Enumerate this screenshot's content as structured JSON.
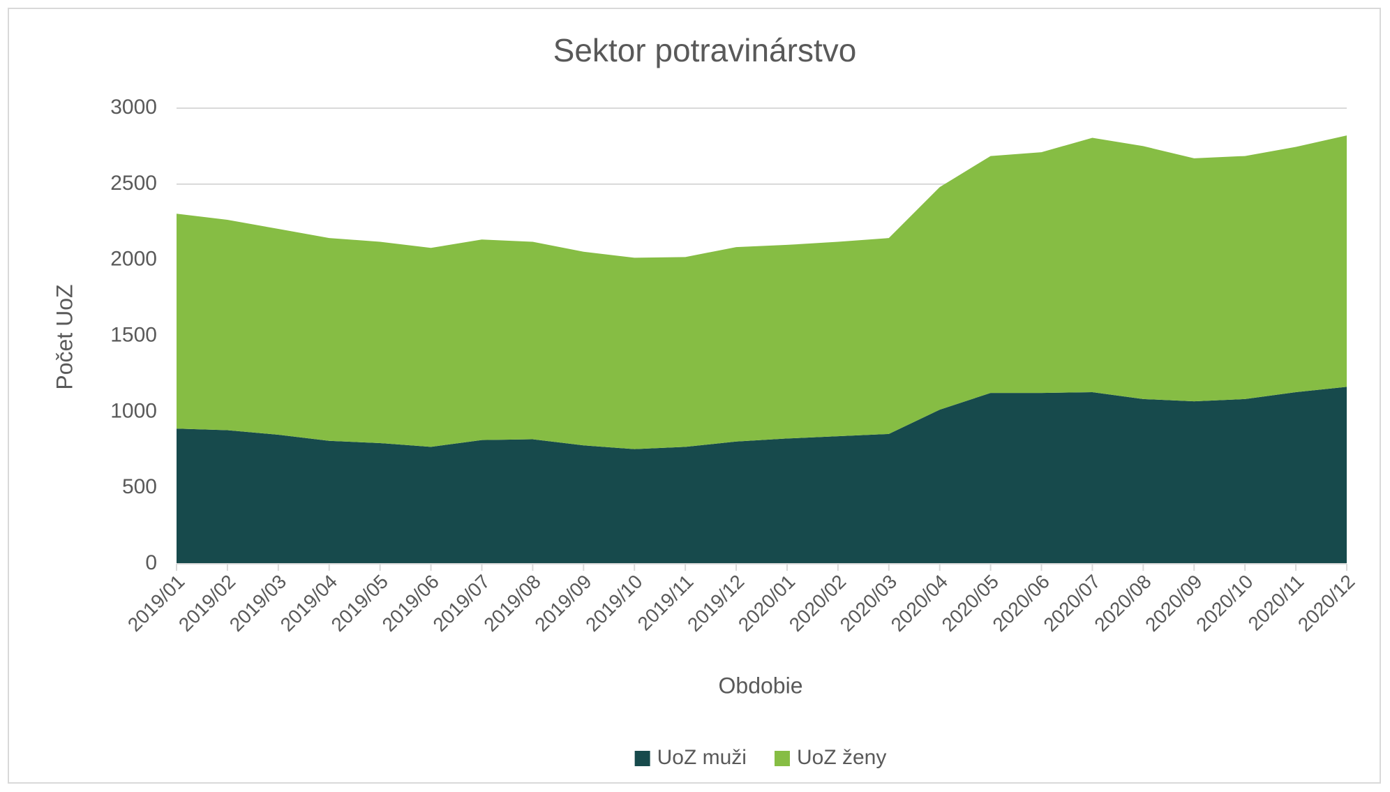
{
  "chart_data": {
    "type": "area",
    "stacked": true,
    "title": "Sektor potravinárstvo",
    "x_label": "Obdobie",
    "y_label": "Počet UoZ",
    "categories": [
      "2019/01",
      "2019/02",
      "2019/03",
      "2019/04",
      "2019/05",
      "2019/06",
      "2019/07",
      "2019/08",
      "2019/09",
      "2019/10",
      "2019/11",
      "2019/12",
      "2020/01",
      "2020/02",
      "2020/03",
      "2020/04",
      "2020/05",
      "2020/06",
      "2020/07",
      "2020/08",
      "2020/09",
      "2020/10",
      "2020/11",
      "2020/12"
    ],
    "series": [
      {
        "name": "UoZ muži",
        "color": "#174a4c",
        "values": [
          890,
          880,
          850,
          810,
          795,
          770,
          815,
          820,
          780,
          755,
          770,
          805,
          825,
          840,
          855,
          1015,
          1125,
          1125,
          1130,
          1085,
          1070,
          1085,
          1130,
          1165
        ]
      },
      {
        "name": "UoZ ženy",
        "color": "#86bd44",
        "values": [
          1415,
          1385,
          1355,
          1335,
          1325,
          1310,
          1320,
          1300,
          1275,
          1260,
          1250,
          1280,
          1275,
          1280,
          1290,
          1465,
          1560,
          1585,
          1675,
          1665,
          1600,
          1600,
          1615,
          1655
        ]
      }
    ],
    "ylim": [
      0,
      3000
    ],
    "yticks": [
      0,
      500,
      1000,
      1500,
      2000,
      2500,
      3000
    ],
    "grid": true,
    "legend": "bottom"
  }
}
